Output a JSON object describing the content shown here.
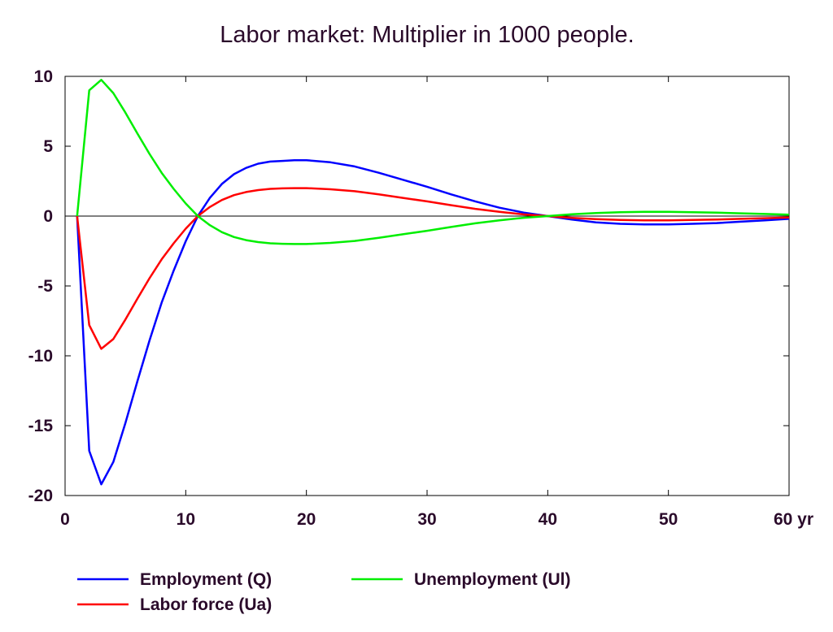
{
  "chart_data": {
    "type": "line",
    "title": "Labor market: Multiplier in 1000 people.",
    "xlabel": "",
    "ylabel": "",
    "x_unit_suffix": "yr",
    "xlim": [
      0,
      60
    ],
    "ylim": [
      -20,
      10
    ],
    "x_ticks": [
      "0",
      "10",
      "20",
      "30",
      "40",
      "50",
      "60 yr"
    ],
    "y_ticks": [
      "10",
      "5",
      "0",
      "-5",
      "-10",
      "-15",
      "-20"
    ],
    "grid": false,
    "zero_line": true,
    "legend_position": "bottom",
    "series": [
      {
        "name": "Employment (Q)",
        "color": "#0000ff",
        "x": [
          1,
          2,
          3,
          4,
          5,
          6,
          7,
          8,
          9,
          10,
          11,
          12,
          13,
          14,
          15,
          16,
          17,
          18,
          19,
          20,
          22,
          24,
          26,
          28,
          30,
          32,
          34,
          36,
          38,
          40,
          42,
          44,
          46,
          48,
          50,
          52,
          54,
          56,
          58,
          60
        ],
        "values": [
          0,
          -16.8,
          -19.2,
          -17.6,
          -14.8,
          -11.8,
          -8.9,
          -6.2,
          -3.9,
          -1.8,
          0,
          1.3,
          2.3,
          3.0,
          3.45,
          3.75,
          3.9,
          3.95,
          4.0,
          4.0,
          3.85,
          3.55,
          3.1,
          2.6,
          2.1,
          1.55,
          1.05,
          0.6,
          0.25,
          0,
          -0.25,
          -0.45,
          -0.55,
          -0.6,
          -0.6,
          -0.55,
          -0.5,
          -0.4,
          -0.3,
          -0.2
        ]
      },
      {
        "name": "Labor force (Ua)",
        "color": "#ff0000",
        "x": [
          1,
          2,
          3,
          4,
          5,
          6,
          7,
          8,
          9,
          10,
          11,
          12,
          13,
          14,
          15,
          16,
          17,
          18,
          19,
          20,
          22,
          24,
          26,
          28,
          30,
          32,
          34,
          36,
          38,
          40,
          42,
          44,
          46,
          48,
          50,
          52,
          54,
          56,
          58,
          60
        ],
        "values": [
          0,
          -7.8,
          -9.5,
          -8.8,
          -7.4,
          -5.9,
          -4.45,
          -3.1,
          -1.95,
          -0.9,
          0,
          0.65,
          1.15,
          1.5,
          1.72,
          1.86,
          1.95,
          1.98,
          2.0,
          2.0,
          1.92,
          1.78,
          1.55,
          1.3,
          1.05,
          0.78,
          0.52,
          0.3,
          0.12,
          0,
          -0.13,
          -0.22,
          -0.28,
          -0.3,
          -0.3,
          -0.28,
          -0.25,
          -0.2,
          -0.15,
          -0.1
        ]
      },
      {
        "name": "Unemployment (Ul)",
        "color": "#00ee00",
        "x": [
          1,
          2,
          3,
          4,
          5,
          6,
          7,
          8,
          9,
          10,
          11,
          12,
          13,
          14,
          15,
          16,
          17,
          18,
          19,
          20,
          22,
          24,
          26,
          28,
          30,
          32,
          34,
          36,
          38,
          40,
          42,
          44,
          46,
          48,
          50,
          52,
          54,
          56,
          58,
          60
        ],
        "values": [
          0,
          9.0,
          9.75,
          8.8,
          7.4,
          5.9,
          4.45,
          3.1,
          1.95,
          0.9,
          0,
          -0.65,
          -1.15,
          -1.5,
          -1.72,
          -1.86,
          -1.95,
          -1.98,
          -2.0,
          -2.0,
          -1.92,
          -1.78,
          -1.55,
          -1.3,
          -1.05,
          -0.78,
          -0.52,
          -0.3,
          -0.12,
          0,
          0.13,
          0.22,
          0.28,
          0.3,
          0.3,
          0.28,
          0.25,
          0.2,
          0.15,
          0.1
        ]
      }
    ]
  }
}
